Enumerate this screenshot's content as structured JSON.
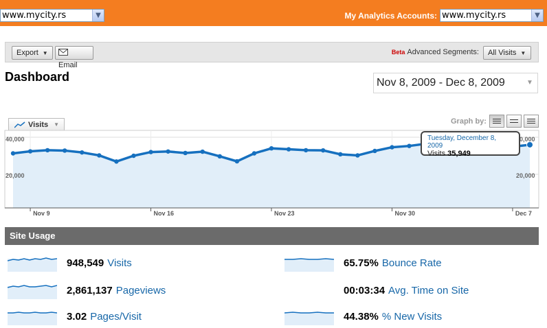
{
  "top_bar": {
    "site_select_value": "www.mycity.rs",
    "accounts_label": "My Analytics Accounts:",
    "accounts_select_value": "www.mycity.rs"
  },
  "toolbar": {
    "export_label": "Export",
    "email_label": "Email",
    "beta_label": "Beta",
    "segments_label": "Advanced Segments:",
    "segments_value": "All Visits"
  },
  "page_title": "Dashboard",
  "date_range": "Nov 8, 2009 - Dec 8, 2009",
  "graph": {
    "metric_tab_label": "Visits",
    "graph_by_label": "Graph by:",
    "tooltip_date": "Tuesday, December 8, 2009",
    "tooltip_metric": "Visits",
    "tooltip_value": "35,949",
    "y_tick_top": "40,000",
    "y_tick_mid": "20,000",
    "y_tick_top_right": "40,000",
    "y_tick_mid_right": "20,000"
  },
  "chart_data": {
    "type": "area",
    "title": "",
    "xlabel": "",
    "ylabel": "",
    "ylim": [
      0,
      40000
    ],
    "x": [
      "Nov 8",
      "Nov 9",
      "Nov 10",
      "Nov 11",
      "Nov 12",
      "Nov 13",
      "Nov 14",
      "Nov 15",
      "Nov 16",
      "Nov 17",
      "Nov 18",
      "Nov 19",
      "Nov 20",
      "Nov 21",
      "Nov 22",
      "Nov 23",
      "Nov 24",
      "Nov 25",
      "Nov 26",
      "Nov 27",
      "Nov 28",
      "Nov 29",
      "Nov 30",
      "Dec 1",
      "Dec 2",
      "Dec 3",
      "Dec 4",
      "Dec 5",
      "Dec 6",
      "Dec 7",
      "Dec 8"
    ],
    "x_tick_labels": [
      "Nov 9",
      "Nov 16",
      "Nov 23",
      "Nov 30",
      "Dec 7"
    ],
    "series": [
      {
        "values": [
          31300,
          32400,
          33000,
          32800,
          31800,
          30200,
          26900,
          30000,
          32000,
          32300,
          31500,
          32200,
          29700,
          27000,
          31300,
          34000,
          33500,
          33000,
          32900,
          30800,
          30200,
          32600,
          34600,
          35300,
          36500,
          35300,
          31400,
          34000,
          35100,
          34900,
          35949
        ]
      }
    ],
    "grid": true,
    "legend": "none"
  },
  "site_usage": {
    "heading": "Site Usage",
    "metrics": [
      {
        "value": "948,549",
        "label": "Visits"
      },
      {
        "value": "2,861,137",
        "label": "Pageviews"
      },
      {
        "value": "3.02",
        "label": "Pages/Visit"
      },
      {
        "value": "65.75%",
        "label": "Bounce Rate"
      },
      {
        "value": "00:03:34",
        "label": "Avg. Time on Site"
      },
      {
        "value": "44.38%",
        "label": "% New Visits"
      }
    ]
  },
  "colors": {
    "top_bar": "#f47d20",
    "line": "#1670bf",
    "area_fill": "#e1eef9",
    "link_blue": "#1767a8",
    "section_header": "#6b6b6b"
  }
}
